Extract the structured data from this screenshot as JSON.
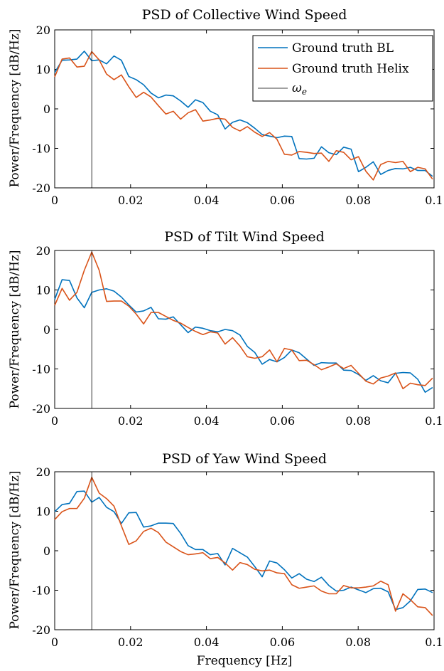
{
  "xlabel": "Frequency [Hz]",
  "legend": {
    "bl_label": "Ground truth BL",
    "helix_label": "Ground truth Helix",
    "marker_label": "ω",
    "marker_sub": "e"
  },
  "colors": {
    "bl": "#0072BD",
    "helix": "#D95319",
    "marker": "#000000"
  },
  "chart_data": [
    {
      "type": "line",
      "title": "PSD of Collective Wind Speed",
      "ylabel": "Power/Frequency [dB/Hz]",
      "xlim": [
        0,
        0.1
      ],
      "ylim": [
        -20,
        20
      ],
      "xticks": [
        0,
        0.02,
        0.04,
        0.06,
        0.08,
        0.1
      ],
      "xticklabels": [
        "0",
        "0.02",
        "0.04",
        "0.06",
        "0.08",
        "0.1"
      ],
      "yticks": [
        -20,
        -10,
        0,
        10,
        20
      ],
      "yticklabels": [
        "-20",
        "-10",
        "0",
        "10",
        "20"
      ],
      "vline_x": 0.00977,
      "legend_position": "top-right",
      "series": [
        {
          "name": "Ground truth BL",
          "x": [
            0,
            0.00195,
            0.0039,
            0.00586,
            0.00781,
            0.00977,
            0.01172,
            0.01367,
            0.01563,
            0.01758,
            0.01953,
            0.02148,
            0.02344,
            0.02539,
            0.02734,
            0.0293,
            0.03125,
            0.0332,
            0.03516,
            0.03711,
            0.03906,
            0.04102,
            0.04297,
            0.04492,
            0.04688,
            0.04883,
            0.05078,
            0.05273,
            0.05469,
            0.05664,
            0.05859,
            0.06055,
            0.0625,
            0.06445,
            0.06641,
            0.06836,
            0.07031,
            0.07227,
            0.07422,
            0.07617,
            0.07813,
            0.08008,
            0.08203,
            0.08398,
            0.08594,
            0.08789,
            0.08984,
            0.0918,
            0.09375,
            0.0957,
            0.09766,
            0.09961
          ],
          "y": [
            9.2,
            12.3,
            12.4,
            12.6,
            14.6,
            12.2,
            12.4,
            11.4,
            13.4,
            12.3,
            8.2,
            7.4,
            6.1,
            4.0,
            2.8,
            3.5,
            3.3,
            2.0,
            0.4,
            2.3,
            1.6,
            -0.6,
            -1.5,
            -5.1,
            -3.4,
            -2.8,
            -3.5,
            -4.9,
            -6.5,
            -6.9,
            -7.3,
            -6.9,
            -7.0,
            -12.6,
            -12.7,
            -12.5,
            -9.6,
            -11.1,
            -11.6,
            -9.7,
            -10.2,
            -15.9,
            -14.8,
            -13.4,
            -16.6,
            -15.6,
            -15.1,
            -15.2,
            -14.8,
            -15.6,
            -15.6,
            -17.1
          ]
        },
        {
          "name": "Ground truth Helix",
          "x": [
            0,
            0.00195,
            0.0039,
            0.00586,
            0.00781,
            0.00977,
            0.01172,
            0.01367,
            0.01563,
            0.01758,
            0.01953,
            0.02148,
            0.02344,
            0.02539,
            0.02734,
            0.0293,
            0.03125,
            0.0332,
            0.03516,
            0.03711,
            0.03906,
            0.04102,
            0.04297,
            0.04492,
            0.04688,
            0.04883,
            0.05078,
            0.05273,
            0.05469,
            0.05664,
            0.05859,
            0.06055,
            0.0625,
            0.06445,
            0.06641,
            0.06836,
            0.07031,
            0.07227,
            0.07422,
            0.07617,
            0.07813,
            0.08008,
            0.08203,
            0.08398,
            0.08594,
            0.08789,
            0.08984,
            0.0918,
            0.09375,
            0.0957,
            0.09766,
            0.09961
          ],
          "y": [
            8.1,
            12.6,
            12.9,
            10.6,
            10.8,
            14.5,
            12.4,
            8.8,
            7.4,
            8.6,
            5.6,
            2.9,
            4.2,
            3.0,
            0.8,
            -1.3,
            -0.6,
            -2.6,
            -1.0,
            -0.2,
            -3.1,
            -2.8,
            -2.4,
            -2.6,
            -4.7,
            -5.6,
            -4.5,
            -5.9,
            -7.0,
            -6.0,
            -7.7,
            -11.5,
            -11.7,
            -10.8,
            -11.0,
            -11.3,
            -11.2,
            -13.3,
            -10.6,
            -11.0,
            -12.9,
            -12.1,
            -15.8,
            -18.0,
            -14.1,
            -13.3,
            -13.6,
            -13.3,
            -15.9,
            -14.8,
            -15.2,
            -17.8
          ]
        }
      ]
    },
    {
      "type": "line",
      "title": "PSD of Tilt Wind Speed",
      "ylabel": "Power/Frequency [dB/Hz]",
      "xlim": [
        0,
        0.1
      ],
      "ylim": [
        -20,
        20
      ],
      "xticks": [
        0,
        0.02,
        0.04,
        0.06,
        0.08,
        0.1
      ],
      "xticklabels": [
        "0",
        "0.02",
        "0.04",
        "0.06",
        "0.08",
        "0.1"
      ],
      "yticks": [
        -20,
        -10,
        0,
        10,
        20
      ],
      "yticklabels": [
        "-20",
        "-10",
        "0",
        "10",
        "20"
      ],
      "vline_x": 0.00977,
      "series": [
        {
          "name": "Ground truth BL",
          "x": [
            0,
            0.00195,
            0.0039,
            0.00586,
            0.00781,
            0.00977,
            0.01172,
            0.01367,
            0.01563,
            0.01758,
            0.01953,
            0.02148,
            0.02344,
            0.02539,
            0.02734,
            0.0293,
            0.03125,
            0.0332,
            0.03516,
            0.03711,
            0.03906,
            0.04102,
            0.04297,
            0.04492,
            0.04688,
            0.04883,
            0.05078,
            0.05273,
            0.05469,
            0.05664,
            0.05859,
            0.06055,
            0.0625,
            0.06445,
            0.06641,
            0.06836,
            0.07031,
            0.07227,
            0.07422,
            0.07617,
            0.07813,
            0.08008,
            0.08203,
            0.08398,
            0.08594,
            0.08789,
            0.08984,
            0.0918,
            0.09375,
            0.0957,
            0.09766,
            0.09961
          ],
          "y": [
            7.6,
            12.6,
            12.4,
            8.0,
            5.5,
            9.4,
            10.0,
            10.3,
            9.7,
            8.2,
            6.2,
            4.4,
            4.7,
            5.6,
            2.7,
            2.6,
            3.2,
            1.2,
            -0.8,
            0.6,
            0.3,
            -0.3,
            -0.6,
            0.0,
            -0.3,
            -1.4,
            -4.3,
            -5.8,
            -8.8,
            -7.6,
            -8.2,
            -7.1,
            -5.2,
            -5.9,
            -7.5,
            -9.1,
            -8.4,
            -8.5,
            -8.5,
            -10.3,
            -10.4,
            -11.4,
            -12.9,
            -11.7,
            -13.0,
            -13.5,
            -11.1,
            -10.9,
            -11.0,
            -12.6,
            -15.9,
            -14.7
          ]
        },
        {
          "name": "Ground truth Helix",
          "x": [
            0,
            0.00195,
            0.0039,
            0.00586,
            0.00781,
            0.00977,
            0.01172,
            0.01367,
            0.01563,
            0.01758,
            0.01953,
            0.02148,
            0.02344,
            0.02539,
            0.02734,
            0.0293,
            0.03125,
            0.0332,
            0.03516,
            0.03711,
            0.03906,
            0.04102,
            0.04297,
            0.04492,
            0.04688,
            0.04883,
            0.05078,
            0.05273,
            0.05469,
            0.05664,
            0.05859,
            0.06055,
            0.0625,
            0.06445,
            0.06641,
            0.06836,
            0.07031,
            0.07227,
            0.07422,
            0.07617,
            0.07813,
            0.08008,
            0.08203,
            0.08398,
            0.08594,
            0.08789,
            0.08984,
            0.0918,
            0.09375,
            0.0957,
            0.09766,
            0.09961
          ],
          "y": [
            6.1,
            10.4,
            7.4,
            9.4,
            15.0,
            19.6,
            15.0,
            7.1,
            7.2,
            7.2,
            5.9,
            3.9,
            1.4,
            4.3,
            4.3,
            3.3,
            2.3,
            1.6,
            0.5,
            -0.5,
            -1.3,
            -0.6,
            -0.9,
            -3.7,
            -2.1,
            -4.2,
            -6.9,
            -7.3,
            -6.9,
            -5.2,
            -8.2,
            -4.8,
            -5.2,
            -7.9,
            -7.8,
            -8.9,
            -10.2,
            -9.5,
            -8.7,
            -9.9,
            -9.1,
            -11.1,
            -13.1,
            -13.8,
            -12.3,
            -11.8,
            -11.0,
            -15.0,
            -13.6,
            -14.0,
            -14.2,
            -12.3
          ]
        }
      ]
    },
    {
      "type": "line",
      "title": "PSD of Yaw Wind Speed",
      "ylabel": "Power/Frequency [dB/Hz]",
      "xlabel": "Frequency [Hz]",
      "xlim": [
        0,
        0.1
      ],
      "ylim": [
        -20,
        20
      ],
      "xticks": [
        0,
        0.02,
        0.04,
        0.06,
        0.08,
        0.1
      ],
      "xticklabels": [
        "0",
        "0.02",
        "0.04",
        "0.06",
        "0.08",
        "0.1"
      ],
      "yticks": [
        -20,
        -10,
        0,
        10,
        20
      ],
      "yticklabels": [
        "-20",
        "-10",
        "0",
        "10",
        "20"
      ],
      "vline_x": 0.00977,
      "series": [
        {
          "name": "Ground truth BL",
          "x": [
            0,
            0.00195,
            0.0039,
            0.00586,
            0.00781,
            0.00977,
            0.01172,
            0.01367,
            0.01563,
            0.01758,
            0.01953,
            0.02148,
            0.02344,
            0.02539,
            0.02734,
            0.0293,
            0.03125,
            0.0332,
            0.03516,
            0.03711,
            0.03906,
            0.04102,
            0.04297,
            0.04492,
            0.04688,
            0.04883,
            0.05078,
            0.05273,
            0.05469,
            0.05664,
            0.05859,
            0.06055,
            0.0625,
            0.06445,
            0.06641,
            0.06836,
            0.07031,
            0.07227,
            0.07422,
            0.07617,
            0.07813,
            0.08008,
            0.08203,
            0.08398,
            0.08594,
            0.08789,
            0.08984,
            0.0918,
            0.09375,
            0.0957,
            0.09766,
            0.09961
          ],
          "y": [
            9.9,
            11.7,
            12.0,
            15.0,
            15.1,
            12.3,
            13.5,
            11.0,
            9.9,
            6.9,
            9.6,
            9.7,
            6.0,
            6.3,
            7.0,
            7.0,
            6.9,
            4.4,
            1.3,
            0.3,
            0.3,
            -1.0,
            -0.7,
            -3.6,
            0.6,
            -0.5,
            -1.6,
            -4.0,
            -6.6,
            -2.6,
            -3.1,
            -4.8,
            -6.9,
            -5.8,
            -7.2,
            -7.8,
            -6.7,
            -8.8,
            -10.2,
            -10.0,
            -9.2,
            -9.9,
            -10.6,
            -9.6,
            -9.5,
            -10.4,
            -14.9,
            -14.4,
            -12.7,
            -9.8,
            -9.7,
            -10.6
          ]
        },
        {
          "name": "Ground truth Helix",
          "x": [
            0,
            0.00195,
            0.0039,
            0.00586,
            0.00781,
            0.00977,
            0.01172,
            0.01367,
            0.01563,
            0.01758,
            0.01953,
            0.02148,
            0.02344,
            0.02539,
            0.02734,
            0.0293,
            0.03125,
            0.0332,
            0.03516,
            0.03711,
            0.03906,
            0.04102,
            0.04297,
            0.04492,
            0.04688,
            0.04883,
            0.05078,
            0.05273,
            0.05469,
            0.05664,
            0.05859,
            0.06055,
            0.0625,
            0.06445,
            0.06641,
            0.06836,
            0.07031,
            0.07227,
            0.07422,
            0.07617,
            0.07813,
            0.08008,
            0.08203,
            0.08398,
            0.08594,
            0.08789,
            0.08984,
            0.0918,
            0.09375,
            0.0957,
            0.09766,
            0.09961
          ],
          "y": [
            7.9,
            9.9,
            10.7,
            10.7,
            13.3,
            18.6,
            14.6,
            13.2,
            11.3,
            6.3,
            1.6,
            2.5,
            4.9,
            5.7,
            4.6,
            2.2,
            1.0,
            -0.2,
            -1.0,
            -0.8,
            -0.5,
            -2.0,
            -1.7,
            -3.1,
            -4.9,
            -3.0,
            -3.5,
            -4.7,
            -5.1,
            -4.9,
            -5.6,
            -5.8,
            -8.6,
            -9.5,
            -9.2,
            -8.9,
            -10.2,
            -10.9,
            -10.9,
            -8.8,
            -9.4,
            -9.4,
            -9.2,
            -8.9,
            -7.7,
            -8.6,
            -15.3,
            -10.9,
            -12.4,
            -14.2,
            -14.4,
            -16.4
          ]
        }
      ]
    }
  ]
}
